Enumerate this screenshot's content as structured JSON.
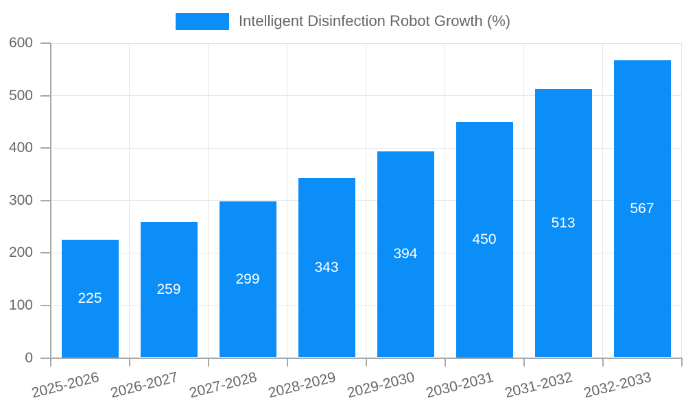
{
  "chart_data": {
    "type": "bar",
    "title": "Intelligent Disinfection Robot Growth (%)",
    "categories": [
      "2025-2026",
      "2026-2027",
      "2027-2028",
      "2028-2029",
      "2029-2030",
      "2030-2031",
      "2031-2032",
      "2032-2033"
    ],
    "values": [
      225,
      259,
      299,
      343,
      394,
      450,
      513,
      567
    ],
    "xlabel": "",
    "ylabel": "",
    "ylim": [
      0,
      600
    ],
    "yticks": [
      0,
      100,
      200,
      300,
      400,
      500,
      600
    ],
    "grid": true,
    "legend_position": "top",
    "value_label_position": "inside-center",
    "x_label_rotation_deg": -14
  },
  "legend": {
    "label": "Intelligent Disinfection Robot Growth (%)"
  },
  "colors": {
    "bar": "#0b8ef8",
    "tick_label": "#666666",
    "value_label": "#ffffff",
    "grid_line": "#e6e6e6",
    "axis_line": "#a8a8a8",
    "background": "#ffffff"
  }
}
